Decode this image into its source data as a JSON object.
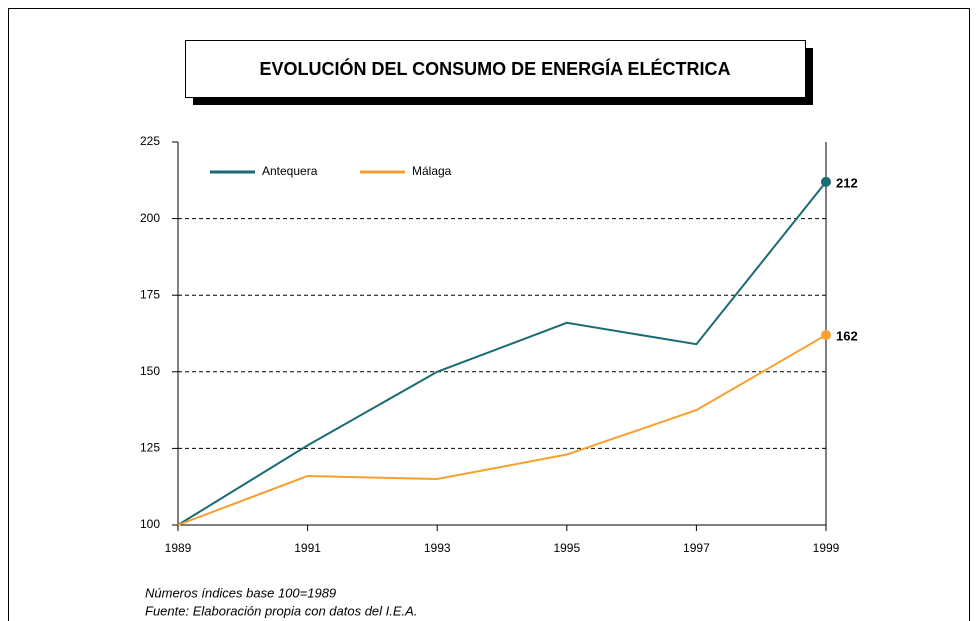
{
  "chart_data": {
    "type": "line",
    "title": "EVOLUCIÓN DEL CONSUMO DE ENERGÍA ELÉCTRICA",
    "x": [
      1989,
      1991,
      1993,
      1995,
      1997,
      1999
    ],
    "series": [
      {
        "name": "Antequera",
        "color": "#1a6b73",
        "values": [
          100,
          126,
          150,
          166,
          159,
          212
        ]
      },
      {
        "name": "Málaga",
        "color": "#f7a030",
        "values": [
          100,
          116,
          115,
          123,
          137.5,
          162
        ]
      }
    ],
    "xlim": [
      1989,
      1999
    ],
    "xticks": [
      1989,
      1991,
      1993,
      1995,
      1997,
      1999
    ],
    "ylim": [
      100,
      225
    ],
    "yticks": [
      100,
      125,
      150,
      175,
      200,
      225
    ],
    "grid": true,
    "legend": "top-left",
    "notes": [
      "Números índices base 100=1989",
      "Fuente: Elaboración propia con datos del I.E.A."
    ]
  }
}
